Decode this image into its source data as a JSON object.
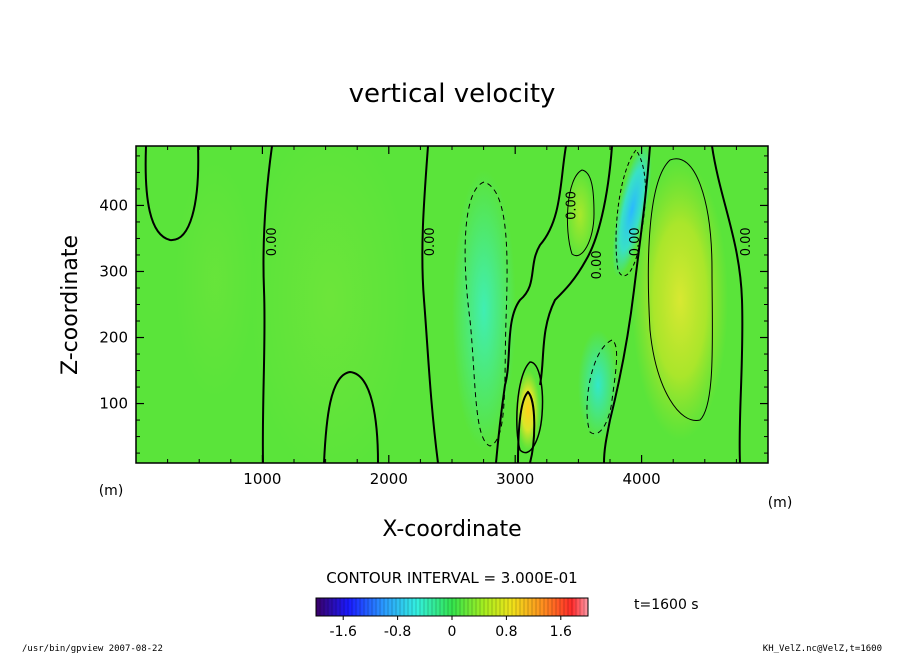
{
  "chart_data": {
    "type": "heatmap",
    "title": "vertical velocity",
    "xlabel": "X-coordinate",
    "ylabel": "Z-coordinate",
    "x_unit": "(m)",
    "z_unit": "(m)",
    "xlim": [
      0,
      5000
    ],
    "ylim": [
      10,
      490
    ],
    "x_ticks": [
      1000,
      2000,
      3000,
      4000
    ],
    "x_tick_labels": [
      "1000",
      "2000",
      "3000",
      "4000"
    ],
    "y_ticks": [
      100,
      200,
      300,
      400
    ],
    "y_tick_labels": [
      "100",
      "200",
      "300",
      "400"
    ],
    "contour_interval_text": "CONTOUR INTERVAL = 3.000E-01",
    "contour_labels": [
      {
        "text": "0.00",
        "x": 1080,
        "z": 345
      },
      {
        "text": "0.00",
        "x": 2330,
        "z": 345
      },
      {
        "text": "0.00",
        "x": 3450,
        "z": 400
      },
      {
        "text": "0.00",
        "x": 3650,
        "z": 310
      },
      {
        "text": "0.00",
        "x": 3950,
        "z": 345
      },
      {
        "text": "0.00",
        "x": 4830,
        "z": 345
      }
    ],
    "features": [
      {
        "kind": "negative",
        "x": 2700,
        "z": 290,
        "level": -0.5
      },
      {
        "kind": "negative",
        "x": 3650,
        "z": 140,
        "level": -0.6
      },
      {
        "kind": "negative",
        "x": 3950,
        "z": 400,
        "level": -1.0
      },
      {
        "kind": "positive",
        "x": 4320,
        "z": 270,
        "level": 0.6
      },
      {
        "kind": "positive",
        "x": 3150,
        "z": 80,
        "level": 1.0
      },
      {
        "kind": "positive",
        "x": 3550,
        "z": 400,
        "level": 0.4
      }
    ],
    "colorbar": {
      "range": [
        -2.0,
        2.0
      ],
      "tick_values": [
        -1.6,
        -0.8,
        0,
        0.8,
        1.6
      ],
      "tick_labels": [
        "-1.6",
        "-0.8",
        "0",
        "0.8",
        "1.6"
      ]
    },
    "time_label": "t=1600 s",
    "footer_left": "/usr/bin/gpview  2007-08-22",
    "footer_right": "KH_VelZ.nc@VelZ,t=1600"
  }
}
